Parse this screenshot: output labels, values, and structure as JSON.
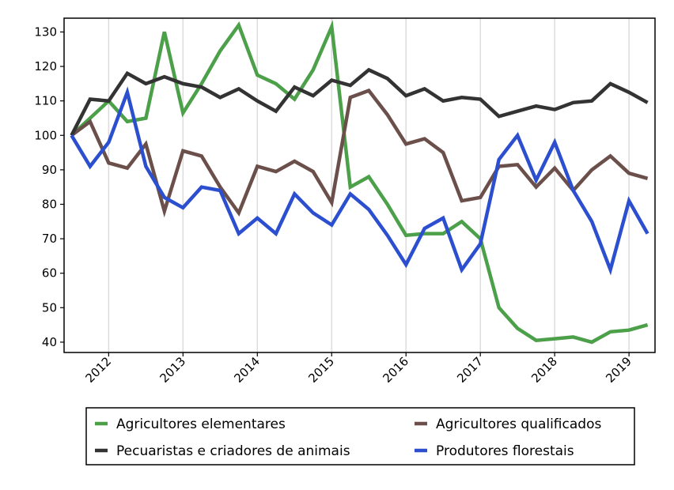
{
  "chart_data": {
    "type": "line",
    "title": "",
    "xlabel": "",
    "ylabel": "",
    "x_ticks": [
      "2012",
      "2013",
      "2014",
      "2015",
      "2016",
      "2017",
      "2018",
      "2019"
    ],
    "y_ticks": [
      "40",
      "50",
      "60",
      "70",
      "80",
      "90",
      "100",
      "110",
      "120",
      "130"
    ],
    "ylim": [
      37,
      134
    ],
    "x_start": 2011.5,
    "x_step": 0.25,
    "grid": "vertical",
    "legend_position": "bottom",
    "series": [
      {
        "name": "Agricultores elementares",
        "color": "#4ca04a",
        "values": [
          100,
          105,
          110,
          104,
          105,
          130,
          106.5,
          115,
          124.5,
          132,
          117.5,
          115,
          110.5,
          119,
          131.5,
          85,
          88,
          80,
          71,
          71.5,
          71.5,
          75,
          70,
          50,
          44,
          40.5,
          41,
          41.5,
          40,
          43,
          43.5,
          45
        ]
      },
      {
        "name": "Agricultores qualificados",
        "color": "#6b4f4a",
        "values": [
          100,
          104,
          92,
          90.5,
          97.5,
          78,
          95.5,
          94,
          85,
          77.5,
          91,
          89.5,
          92.5,
          89.5,
          80.5,
          111,
          113,
          106,
          97.5,
          99,
          95,
          81,
          82,
          91,
          91.5,
          85,
          90.5,
          84,
          90,
          94,
          89,
          87.5
        ]
      },
      {
        "name": "Pecuaristas e criadores de animais",
        "color": "#333333",
        "values": [
          100,
          110.5,
          110,
          118,
          115,
          117,
          115,
          114,
          111,
          113.5,
          110,
          107,
          114,
          111.5,
          116,
          114.5,
          119,
          116.5,
          111.5,
          113.5,
          110,
          111,
          110.5,
          105.5,
          107,
          108.5,
          107.5,
          109.5,
          110,
          115,
          112.5,
          109.5
        ]
      },
      {
        "name": "Produtores florestais",
        "color": "#2b4fcf",
        "values": [
          100,
          91,
          98,
          112.5,
          91,
          82,
          79,
          85,
          84,
          71.5,
          76,
          71.5,
          83,
          77.5,
          74,
          83,
          78.5,
          71,
          62.5,
          73,
          76,
          61,
          68.5,
          93,
          100,
          87,
          98,
          84,
          75,
          61,
          81,
          71.5
        ]
      }
    ]
  }
}
